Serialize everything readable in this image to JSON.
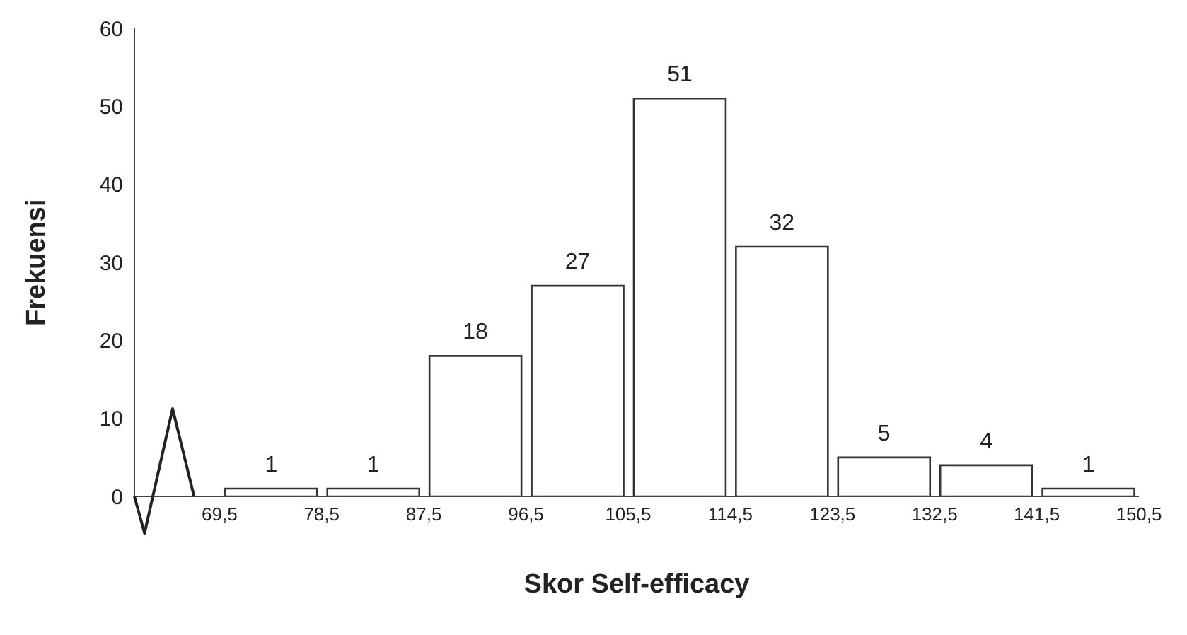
{
  "chart_data": {
    "type": "histogram",
    "xlabel": "Skor Self-efficacy",
    "ylabel": "Frekuensi",
    "bins": [
      69.5,
      78.5,
      87.5,
      96.5,
      105.5,
      114.5,
      123.5,
      132.5,
      141.5,
      150.5
    ],
    "values": [
      1,
      1,
      18,
      27,
      51,
      32,
      5,
      4,
      1
    ],
    "color": "#ffffff",
    "xlim": [
      62,
      150.5
    ],
    "xticks": [
      {
        "value": 69.5,
        "label": "69,5"
      },
      {
        "value": 78.5,
        "label": "78,5"
      },
      {
        "value": 87.5,
        "label": "87,5"
      },
      {
        "value": 96.5,
        "label": "96,5"
      },
      {
        "value": 105.5,
        "label": "105,5"
      },
      {
        "value": 114.5,
        "label": "114,5"
      },
      {
        "value": 123.5,
        "label": "123,5"
      },
      {
        "value": 132.5,
        "label": "132,5"
      },
      {
        "value": 141.5,
        "label": "141,5"
      },
      {
        "value": 150.5,
        "label": "150,5"
      }
    ],
    "ylim": [
      0,
      60
    ],
    "yticks": [
      0,
      10,
      20,
      30,
      40,
      50,
      60
    ],
    "data_labels": true,
    "grid": false
  }
}
